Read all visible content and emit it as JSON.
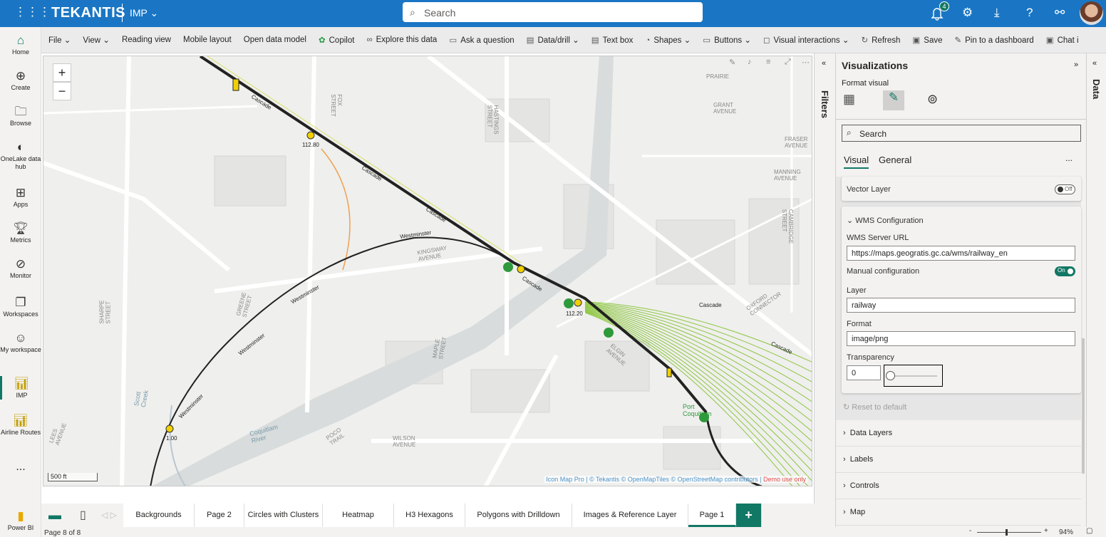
{
  "topbar": {
    "brand": "TEKANTIS",
    "workspace": "IMP",
    "search_placeholder": "Search",
    "notifications": "4",
    "icons": [
      "waffle-icon",
      "bell-icon",
      "gear-icon",
      "download-icon",
      "help-icon",
      "share-icon"
    ]
  },
  "leftnav": [
    {
      "label": "Home",
      "icon": "home-icon"
    },
    {
      "label": "Create",
      "icon": "plus-circle-icon"
    },
    {
      "label": "Browse",
      "icon": "folder-icon"
    },
    {
      "label": "OneLake data hub",
      "icon": "onelake-icon"
    },
    {
      "label": "Apps",
      "icon": "apps-icon"
    },
    {
      "label": "Metrics",
      "icon": "trophy-icon"
    },
    {
      "label": "Monitor",
      "icon": "monitor-icon"
    },
    {
      "label": "Workspaces",
      "icon": "workspaces-icon"
    },
    {
      "label": "My workspace",
      "icon": "avatar-icon"
    },
    {
      "label": "IMP",
      "icon": "report-icon"
    },
    {
      "label": "Airline Routes",
      "icon": "report-icon"
    },
    {
      "label": "...",
      "icon": "more-icon"
    },
    {
      "label": "Power BI",
      "icon": "powerbi-logo"
    }
  ],
  "toolbar": [
    "File",
    "View",
    "Reading view",
    "Mobile layout",
    "Open data model",
    "Copilot",
    "Explore this data",
    "Ask a question",
    "Data/drill",
    "Text box",
    "Shapes",
    "Buttons",
    "Visual interactions",
    "Refresh",
    "Save",
    "Pin to a dashboard",
    "Chat i"
  ],
  "map": {
    "zoom_in": "+",
    "zoom_out": "−",
    "scale": "500 ft",
    "attribution": {
      "parts": [
        "Icon Map Pro",
        "© Tekantis",
        "© OpenMapTiles",
        "© OpenStreetMap contributors"
      ],
      "demo": "Demo use only"
    },
    "streets": [
      "PRAIRIE",
      "GRANT AVENUE",
      "FRASER AVENUE",
      "MANNING AVENUE",
      "KINGSWAY AVENUE",
      "OXFORD CONNECTOR",
      "CAMBRIDGE STREET",
      "HASTINGS STREET",
      "FOX STREET",
      "GREENE STREET",
      "SHARPE STREET",
      "ELGIN AVENUE",
      "MAPLE STREET",
      "WILSON AVENUE",
      "POCO TRAIL",
      "LEES AVENUE"
    ],
    "water": [
      "Coquitlam River",
      "Scott Creek"
    ],
    "rail_labels": {
      "cascade": "Cascade",
      "westminster": "Westminster",
      "mile1": "112.80",
      "mile2": "112.20",
      "mile3": "1.00"
    },
    "station": "Port Coquitlam",
    "colors": {
      "rail": "#222222",
      "yard": "#8cc63f",
      "spur": "#f0a050",
      "station": "#2e9a3c"
    }
  },
  "filters": {
    "label": "Filters"
  },
  "viz": {
    "title": "Visualizations",
    "format_visual": "Format visual",
    "search_placeholder": "Search",
    "tabs": [
      "Visual",
      "General"
    ],
    "more": "...",
    "vector_layer": {
      "label": "Vector Layer",
      "toggle": "Off"
    },
    "wms": {
      "title": "WMS Configuration",
      "url_label": "WMS Server URL",
      "url": "https://maps.geogratis.gc.ca/wms/railway_en",
      "manual_label": "Manual configuration",
      "manual_toggle": "On",
      "layer_label": "Layer",
      "layer": "railway",
      "format_label": "Format",
      "format": "image/png",
      "transparency_label": "Transparency",
      "transparency": "0"
    },
    "reset": "Reset to default",
    "sections": [
      "Data Layers",
      "Labels",
      "Controls",
      "Map"
    ]
  },
  "data_pane": {
    "label": "Data"
  },
  "pages": {
    "tabs": [
      "Backgrounds",
      "Page 2",
      "Circles with Clusters",
      "Heatmap",
      "H3 Hexagons",
      "Polygons with Drilldown",
      "Images & Reference Layer",
      "Page 1"
    ],
    "active": "Page 1",
    "add": "+"
  },
  "status": {
    "page": "Page 8 of 8",
    "zoom": "94%",
    "zoom_minus": "-",
    "zoom_plus": "+"
  }
}
